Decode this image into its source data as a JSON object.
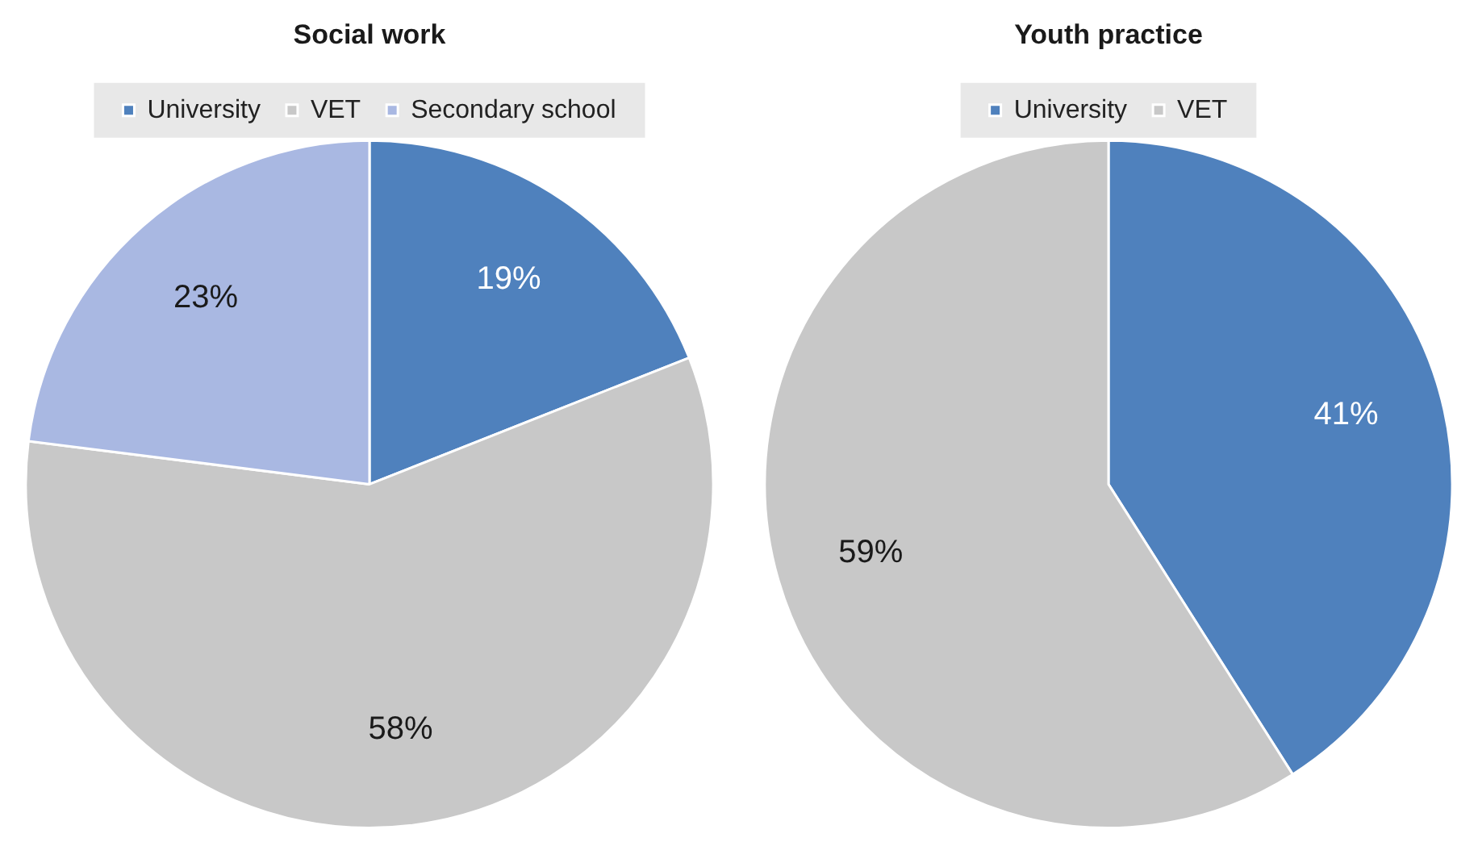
{
  "chart_data": [
    {
      "type": "pie",
      "title": "Social work",
      "categories": [
        "University",
        "VET",
        "Secondary school"
      ],
      "values": [
        19,
        58,
        23
      ],
      "colors": [
        "#4f81bd",
        "#c8c8c8",
        "#a9b8e2"
      ],
      "value_labels": [
        "19%",
        "58%",
        "23%"
      ],
      "legend": "top"
    },
    {
      "type": "pie",
      "title": "Youth practice",
      "categories": [
        "University",
        "VET"
      ],
      "values": [
        41,
        59
      ],
      "colors": [
        "#4f81bd",
        "#c8c8c8"
      ],
      "value_labels": [
        "41%",
        "59%"
      ],
      "legend": "top"
    }
  ]
}
